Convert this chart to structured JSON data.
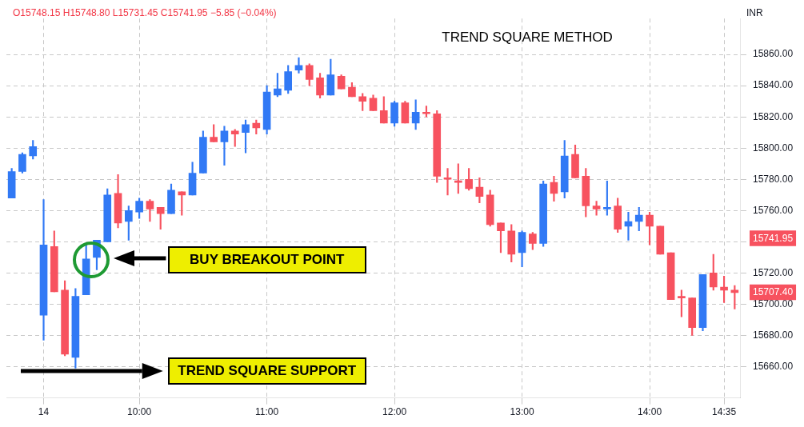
{
  "chart_data": {
    "type": "candlestick",
    "title": "TREND SQUARE METHOD",
    "ylabel": "INR",
    "annotations": [
      "O15748.15 H15748.80 L15731.45 C15741.95 −5.85 (−0.04%)",
      "BUY BREAKOUT POINT",
      "TREND SQUARE SUPPORT"
    ],
    "categories": [
      null,
      null,
      null,
      "14",
      null,
      null,
      null,
      null,
      null,
      null,
      null,
      null,
      "10:00",
      null,
      null,
      null,
      null,
      null,
      null,
      null,
      null,
      null,
      null,
      null,
      "11:00",
      null,
      null,
      null,
      null,
      null,
      null,
      null,
      null,
      null,
      null,
      null,
      "12:00",
      null,
      null,
      null,
      null,
      null,
      null,
      null,
      null,
      null,
      null,
      null,
      "13:00",
      null,
      null,
      null,
      null,
      null,
      null,
      null,
      null,
      null,
      null,
      null,
      "14:00",
      null,
      null,
      null,
      null,
      null,
      null,
      "14:35",
      null
    ],
    "ohlc": [
      [
        15768,
        15787,
        15768,
        15785
      ],
      [
        15785,
        15797,
        15784,
        15796
      ],
      [
        15795,
        15805,
        15793,
        15801
      ],
      [
        15693,
        15767,
        15677,
        15738
      ],
      [
        15737,
        15747,
        15708,
        15708
      ],
      [
        15709,
        15715,
        15667,
        15668
      ],
      [
        15666,
        15710,
        15659,
        15705
      ],
      [
        15706,
        15739,
        15706,
        15729
      ],
      [
        15730,
        15741,
        15722,
        15741
      ],
      [
        15740,
        15774,
        15740,
        15770
      ],
      [
        15771,
        15783,
        15749,
        15752
      ],
      [
        15753,
        15763,
        15741,
        15760
      ],
      [
        15759,
        15768,
        15755,
        15766
      ],
      [
        15766,
        15767,
        15753,
        15761
      ],
      [
        15762,
        15762,
        15748,
        15758
      ],
      [
        15758,
        15777,
        15758,
        15773
      ],
      [
        15772,
        15772,
        15757,
        15770
      ],
      [
        15770,
        15791,
        15770,
        15784
      ],
      [
        15784,
        15811,
        15784,
        15807
      ],
      [
        15807,
        15815,
        15804,
        15804
      ],
      [
        15804,
        15814,
        15789,
        15811
      ],
      [
        15811,
        15812,
        15801,
        15809
      ],
      [
        15810,
        15818,
        15797,
        15815
      ],
      [
        15816,
        15818,
        15809,
        15813
      ],
      [
        15812,
        15840,
        15809,
        15836
      ],
      [
        15834,
        15848,
        15833,
        15838
      ],
      [
        15837,
        15853,
        15835,
        15849
      ],
      [
        15850,
        15858,
        15848,
        15853
      ],
      [
        15853,
        15854,
        15840,
        15844
      ],
      [
        15845,
        15848,
        15832,
        15834
      ],
      [
        15834,
        15857,
        15834,
        15847
      ],
      [
        15846,
        15847,
        15838,
        15838
      ],
      [
        15839,
        15842,
        15833,
        15833
      ],
      [
        15833,
        15835,
        15824,
        15830
      ],
      [
        15832,
        15834,
        15824,
        15824
      ],
      [
        15824,
        15833,
        15816,
        15816
      ],
      [
        15816,
        15830,
        15814,
        15829
      ],
      [
        15829,
        15830,
        15816,
        15816
      ],
      [
        15816,
        15831,
        15812,
        15823
      ],
      [
        15823,
        15827,
        15820,
        15822
      ],
      [
        15822,
        15824,
        15778,
        15782
      ],
      [
        15781,
        15787,
        15770,
        15780
      ],
      [
        15779,
        15790,
        15771,
        15778
      ],
      [
        15780,
        15787,
        15773,
        15774
      ],
      [
        15775,
        15781,
        15765,
        15769
      ],
      [
        15770,
        15773,
        15750,
        15751
      ],
      [
        15752,
        15752,
        15733,
        15747
      ],
      [
        15747,
        15751,
        15727,
        15732
      ],
      [
        15733,
        15747,
        15724,
        15746
      ],
      [
        15745,
        15746,
        15735,
        15739
      ],
      [
        15739,
        15779,
        15737,
        15777
      ],
      [
        15778,
        15782,
        15766,
        15771
      ],
      [
        15772,
        15805,
        15768,
        15795
      ],
      [
        15796,
        15802,
        15781,
        15781
      ],
      [
        15782,
        15787,
        15756,
        15763
      ],
      [
        15763,
        15766,
        15757,
        15761
      ],
      [
        15761,
        15779,
        15757,
        15762
      ],
      [
        15763,
        15768,
        15746,
        15748
      ],
      [
        15750,
        15759,
        15741,
        15753
      ],
      [
        15753,
        15762,
        15747,
        15757
      ],
      [
        15757,
        15759,
        15738,
        15750
      ],
      [
        15750,
        15750,
        15732,
        15732
      ],
      [
        15733,
        15733,
        15703,
        15703
      ],
      [
        15705,
        15709,
        15692,
        15704
      ],
      [
        15704,
        15704,
        15680,
        15685
      ],
      [
        15685,
        15719,
        15683,
        15719
      ],
      [
        15720,
        15732,
        15709,
        15711
      ],
      [
        15711,
        15718,
        15701,
        15709
      ],
      [
        15709,
        15712,
        15697,
        15707.4
      ]
    ],
    "colors": [
      "#3179f5",
      "#3179f5",
      "#3179f5",
      "#3179f5",
      "#f7525f",
      "#f7525f",
      "#3179f5",
      "#3179f5",
      "#3179f5",
      "#3179f5",
      "#f7525f",
      "#3179f5",
      "#3179f5",
      "#f7525f",
      "#f7525f",
      "#3179f5",
      "#f7525f",
      "#3179f5",
      "#3179f5",
      "#f7525f",
      "#3179f5",
      "#f7525f",
      "#3179f5",
      "#f7525f",
      "#3179f5",
      "#3179f5",
      "#3179f5",
      "#3179f5",
      "#f7525f",
      "#f7525f",
      "#3179f5",
      "#f7525f",
      "#f7525f",
      "#f7525f",
      "#f7525f",
      "#f7525f",
      "#3179f5",
      "#f7525f",
      "#3179f5",
      "#f7525f",
      "#f7525f",
      "#f7525f",
      "#f7525f",
      "#f7525f",
      "#f7525f",
      "#f7525f",
      "#f7525f",
      "#f7525f",
      "#3179f5",
      "#f7525f",
      "#3179f5",
      "#f7525f",
      "#3179f5",
      "#f7525f",
      "#f7525f",
      "#f7525f",
      "#3179f5",
      "#f7525f",
      "#3179f5",
      "#3179f5",
      "#f7525f",
      "#f7525f",
      "#f7525f",
      "#f7525f",
      "#f7525f",
      "#3179f5",
      "#f7525f",
      "#f7525f",
      "#f7525f"
    ],
    "ylim": [
      15640,
      15883
    ],
    "yticks": [
      {
        "value": 15660,
        "label": "15660.00"
      },
      {
        "value": 15680,
        "label": "15680.00"
      },
      {
        "value": 15700,
        "label": "15700.00"
      },
      {
        "value": 15720,
        "label": "15720.00"
      },
      {
        "value": 15740,
        "label": null
      },
      {
        "value": 15741.95,
        "label": "15741.95"
      },
      {
        "value": 15707.4,
        "label": "15707.40"
      },
      {
        "value": 15760,
        "label": "15760.00"
      },
      {
        "value": 15780,
        "label": "15780.00"
      },
      {
        "value": 15800,
        "label": "15800.00"
      },
      {
        "value": 15820,
        "label": "15820.00"
      },
      {
        "value": 15840,
        "label": "15840.00"
      },
      {
        "value": 15860,
        "label": "15860.00"
      }
    ],
    "grid": true,
    "legend": false
  }
}
